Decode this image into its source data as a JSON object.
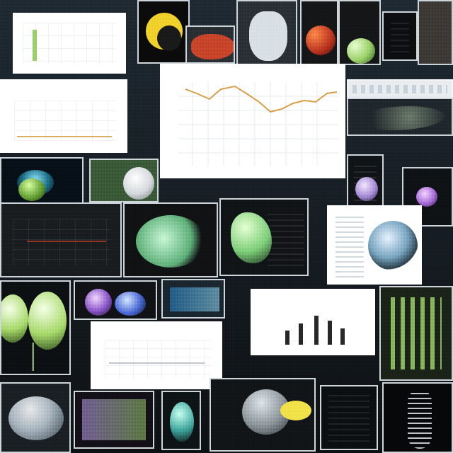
{
  "image": {
    "type": "collage",
    "palette": {
      "background": "#101418",
      "panel_border": "#e9edf0",
      "chart_line": "#d6a24a",
      "plant_green": "#9bd16a",
      "lavender": "#a68bd4",
      "red": "#c9452a"
    }
  }
}
